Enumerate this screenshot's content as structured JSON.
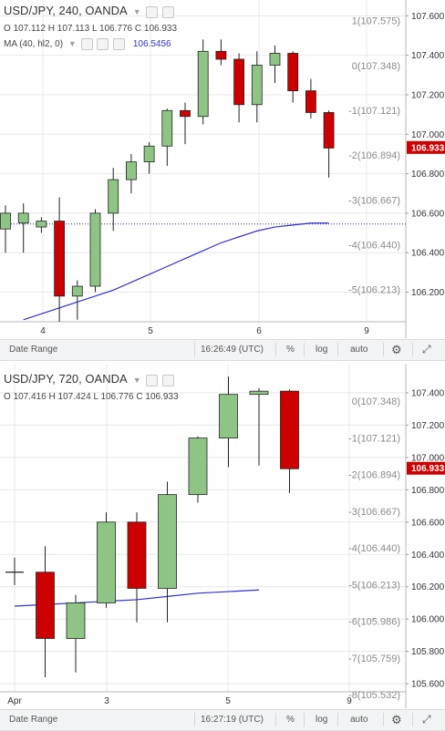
{
  "chart_data": [
    {
      "type": "candlestick",
      "symbol": "USD/JPY",
      "interval": "240",
      "broker": "OANDA",
      "ohlc": {
        "o_label": "O",
        "o": "107.112",
        "h_label": "H",
        "h": "107.113",
        "l_label": "L",
        "l": "106.776",
        "c_label": "C",
        "c": "106.933"
      },
      "ma": {
        "label": "MA (40, hl2, 0)",
        "value": "106.5456",
        "color": "#3030d0"
      },
      "last_price": "106.933",
      "yticks": [
        "107.600",
        "107.400",
        "107.200",
        "107.000",
        "106.800",
        "106.600",
        "106.400",
        "106.200"
      ],
      "ylim": [
        106.05,
        107.62
      ],
      "xlabels": [
        "4",
        "5",
        "6",
        "9"
      ],
      "pct_labels": [
        "1(107.575)",
        "0(107.348)",
        "-1(107.121)",
        "-2(106.894)",
        "-3(106.667)",
        "-4(106.440)",
        "-5(106.213)"
      ],
      "candles": [
        {
          "o": 106.52,
          "h": 106.64,
          "l": 106.4,
          "c": 106.6
        },
        {
          "o": 106.55,
          "h": 106.65,
          "l": 106.4,
          "c": 106.6
        },
        {
          "o": 106.53,
          "h": 106.58,
          "l": 106.5,
          "c": 106.56
        },
        {
          "o": 106.56,
          "h": 106.68,
          "l": 106.05,
          "c": 106.18
        },
        {
          "o": 106.18,
          "h": 106.26,
          "l": 106.06,
          "c": 106.23
        },
        {
          "o": 106.23,
          "h": 106.62,
          "l": 106.2,
          "c": 106.6
        },
        {
          "o": 106.6,
          "h": 106.83,
          "l": 106.51,
          "c": 106.77
        },
        {
          "o": 106.77,
          "h": 106.9,
          "l": 106.7,
          "c": 106.86
        },
        {
          "o": 106.86,
          "h": 106.96,
          "l": 106.8,
          "c": 106.94
        },
        {
          "o": 106.94,
          "h": 107.13,
          "l": 106.84,
          "c": 107.12
        },
        {
          "o": 107.12,
          "h": 107.16,
          "l": 106.95,
          "c": 107.09
        },
        {
          "o": 107.09,
          "h": 107.48,
          "l": 107.05,
          "c": 107.42
        },
        {
          "o": 107.42,
          "h": 107.48,
          "l": 107.35,
          "c": 107.38
        },
        {
          "o": 107.38,
          "h": 107.41,
          "l": 107.06,
          "c": 107.15
        },
        {
          "o": 107.15,
          "h": 107.42,
          "l": 107.06,
          "c": 107.35
        },
        {
          "o": 107.35,
          "h": 107.45,
          "l": 107.26,
          "c": 107.41
        },
        {
          "o": 107.41,
          "h": 107.42,
          "l": 107.16,
          "c": 107.22
        },
        {
          "o": 107.22,
          "h": 107.28,
          "l": 107.08,
          "c": 107.11
        },
        {
          "o": 107.11,
          "h": 107.12,
          "l": 106.78,
          "c": 106.93
        }
      ],
      "ma_points": [
        106.06,
        106.09,
        106.12,
        106.15,
        106.18,
        106.21,
        106.25,
        106.29,
        106.33,
        106.37,
        106.41,
        106.45,
        106.48,
        106.51,
        106.53,
        106.54,
        106.55,
        106.55
      ]
    },
    {
      "type": "candlestick",
      "symbol": "USD/JPY",
      "interval": "720",
      "broker": "OANDA",
      "ohlc": {
        "o_label": "O",
        "o": "107.416",
        "h_label": "H",
        "h": "107.424",
        "l_label": "L",
        "l": "106.776",
        "c_label": "C",
        "c": "106.933"
      },
      "last_price": "106.933",
      "yticks": [
        "107.400",
        "107.200",
        "107.000",
        "106.800",
        "106.600",
        "106.400",
        "106.200",
        "106.000",
        "105.800",
        "105.600"
      ],
      "ylim": [
        105.55,
        107.58
      ],
      "xlabels": [
        "Apr",
        "3",
        "5",
        "9"
      ],
      "pct_labels": [
        "0(107.348)",
        "-1(107.121)",
        "-2(106.894)",
        "-3(106.667)",
        "-4(106.440)",
        "-5(106.213)",
        "-6(105.986)",
        "-7(105.759)",
        "-8(105.532)"
      ],
      "candles": [
        {
          "o": 106.29,
          "h": 106.38,
          "l": 106.21,
          "c": 106.29
        },
        {
          "o": 106.29,
          "h": 106.45,
          "l": 105.64,
          "c": 105.88
        },
        {
          "o": 105.88,
          "h": 106.15,
          "l": 105.67,
          "c": 106.1
        },
        {
          "o": 106.1,
          "h": 106.66,
          "l": 106.07,
          "c": 106.6
        },
        {
          "o": 106.6,
          "h": 106.66,
          "l": 105.98,
          "c": 106.19
        },
        {
          "o": 106.19,
          "h": 106.85,
          "l": 105.98,
          "c": 106.77
        },
        {
          "o": 106.77,
          "h": 107.13,
          "l": 106.72,
          "c": 107.12
        },
        {
          "o": 107.12,
          "h": 107.5,
          "l": 106.94,
          "c": 107.39
        },
        {
          "o": 107.39,
          "h": 107.43,
          "l": 106.95,
          "c": 107.41
        },
        {
          "o": 107.41,
          "h": 107.42,
          "l": 106.78,
          "c": 106.93
        }
      ],
      "ma_points": [
        106.08,
        106.09,
        106.1,
        106.11,
        106.12,
        106.14,
        106.16,
        106.17,
        106.18
      ]
    }
  ],
  "toolbar1": {
    "date_range": "Date Range",
    "time": "16:26:49 (UTC)",
    "percent": "%",
    "log": "log",
    "auto": "auto"
  },
  "toolbar2": {
    "date_range": "Date Range",
    "time": "16:27:19 (UTC)",
    "percent": "%",
    "log": "log",
    "auto": "auto"
  },
  "colors": {
    "up": "#8ec585",
    "down": "#cc0000",
    "grid": "#e8e8e8",
    "ma": "#3030d0",
    "price_tag": "#cc0000"
  }
}
